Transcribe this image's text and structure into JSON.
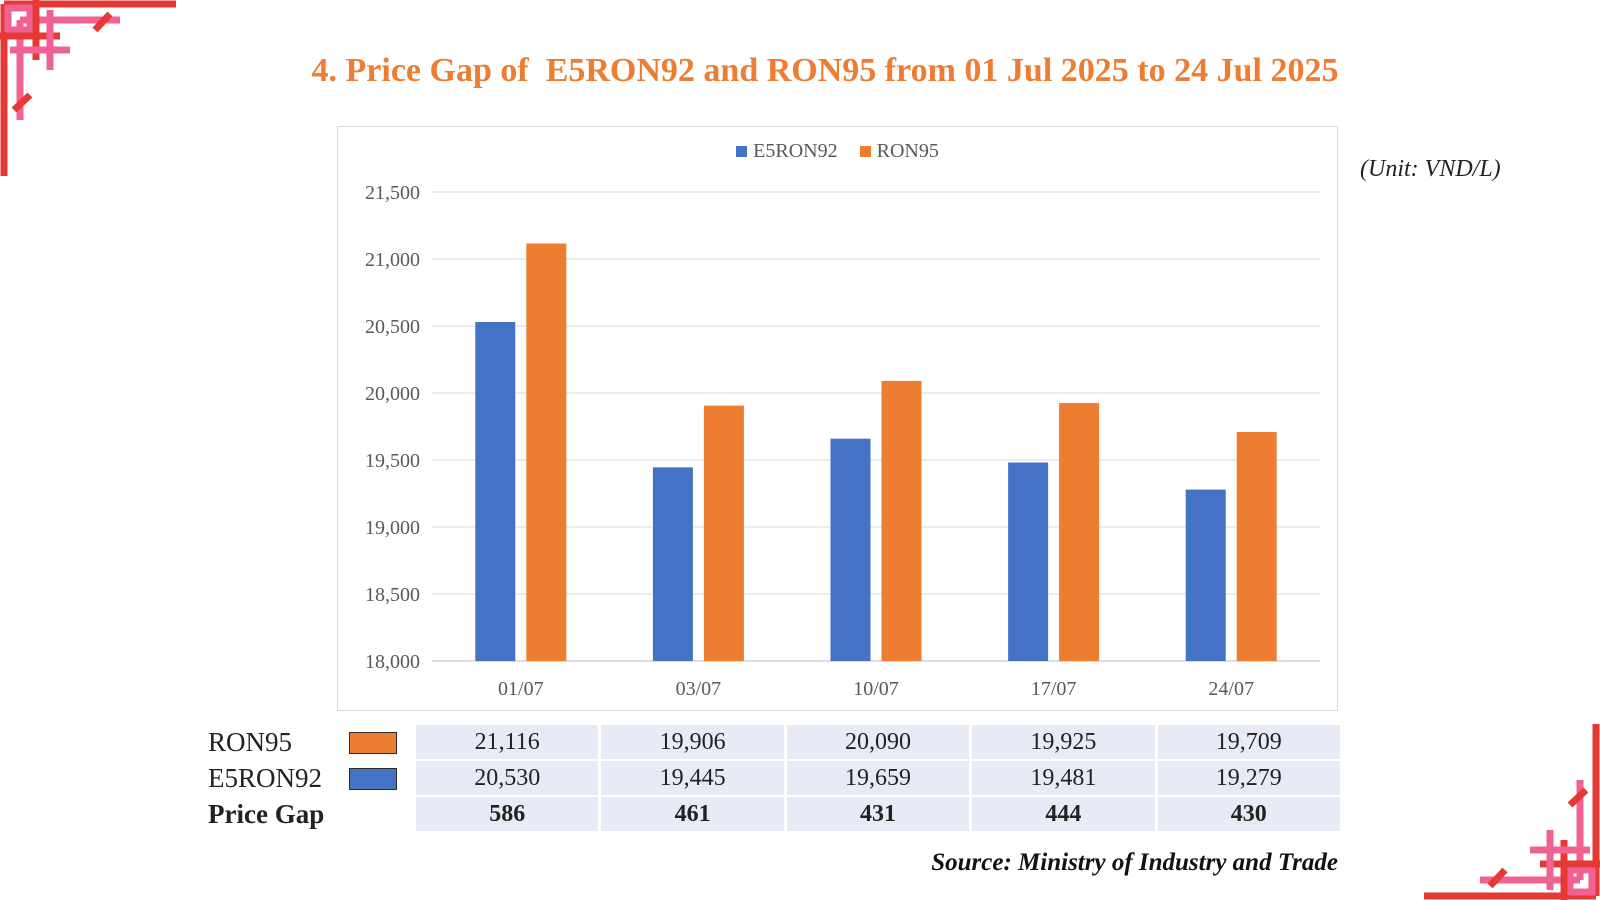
{
  "title": "4. Price Gap of  E5RON92 and RON95 from 01 Jul 2025 to 24 Jul 2025",
  "unit_label": "(Unit: VND/L)",
  "source": "Source: Ministry of Industry and Trade",
  "colors": {
    "e5ron92": "#4472C4",
    "ron95": "#ED7D31",
    "title": "#ED7D31",
    "decoration_pink": "#F06292",
    "decoration_red": "#E53935"
  },
  "chart_data": {
    "type": "bar",
    "title": "",
    "xlabel": "",
    "ylabel": "",
    "categories": [
      "01/07",
      "03/07",
      "10/07",
      "17/07",
      "24/07"
    ],
    "series": [
      {
        "name": "E5RON92",
        "color": "#4472C4",
        "values": [
          20530,
          19445,
          19659,
          19481,
          19279
        ]
      },
      {
        "name": "RON95",
        "color": "#ED7D31",
        "values": [
          21116,
          19906,
          20090,
          19925,
          19709
        ]
      }
    ],
    "ylim": [
      18000,
      21500
    ],
    "yticks": [
      18000,
      18500,
      19000,
      19500,
      20000,
      20500,
      21000,
      21500
    ],
    "ytick_labels": [
      "18,000",
      "18,500",
      "19,000",
      "19,500",
      "20,000",
      "20,500",
      "21,000",
      "21,500"
    ],
    "grid": true,
    "legend_position": "top"
  },
  "table": {
    "rows": [
      {
        "label": "RON95",
        "key_color": "#ED7D31",
        "values": [
          "21,116",
          "19,906",
          "20,090",
          "19,925",
          "19,709"
        ]
      },
      {
        "label": "E5RON92",
        "key_color": "#4472C4",
        "values": [
          "20,530",
          "19,445",
          "19,659",
          "19,481",
          "19,279"
        ]
      },
      {
        "label": "Price Gap",
        "values": [
          "586",
          "461",
          "431",
          "444",
          "430"
        ]
      }
    ]
  }
}
